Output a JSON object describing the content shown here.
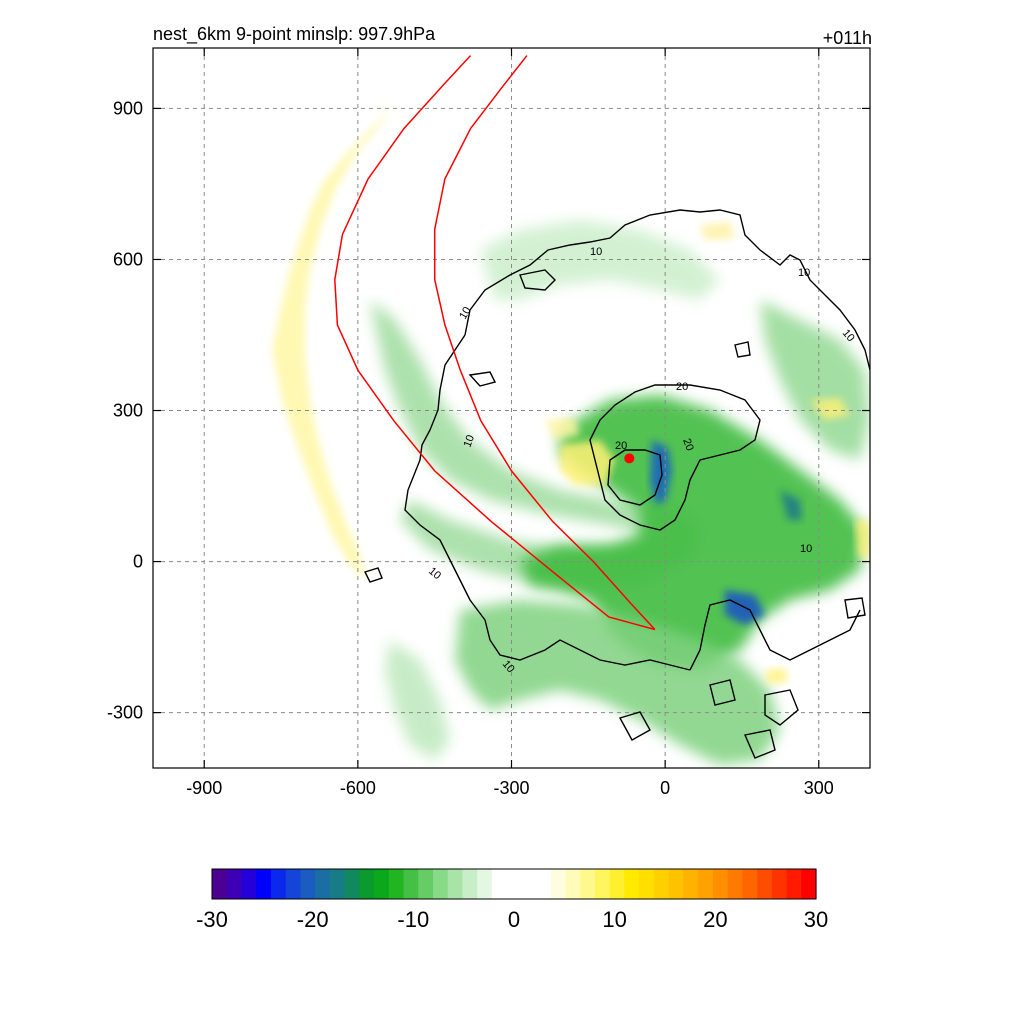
{
  "chart_data": {
    "type": "heatmap",
    "title_left": "nest_6km  9-point minslp: 997.9hPa",
    "title_right": "+011h",
    "xlabel": "",
    "ylabel": "",
    "xlim": [
      -1000,
      400
    ],
    "ylim": [
      -410,
      1020
    ],
    "xticks": [
      -900,
      -600,
      -300,
      0,
      300
    ],
    "yticks": [
      -300,
      0,
      300,
      600,
      900
    ],
    "grid": true,
    "colorbar": {
      "min": -30,
      "max": 30,
      "ticks": [
        -30,
        -20,
        -10,
        0,
        10,
        20,
        30
      ],
      "colors": [
        "#4b0091",
        "#3d00b5",
        "#2400d9",
        "#0000ff",
        "#0a28ee",
        "#1445d8",
        "#1a5cc0",
        "#1b6ea4",
        "#187c86",
        "#12885f",
        "#0a9a2e",
        "#0aa81a",
        "#22b522",
        "#44c044",
        "#66cc66",
        "#88d988",
        "#a8e3a8",
        "#c7eec7",
        "#e3f7e3",
        "#ffffff",
        "#ffffff",
        "#ffffff",
        "#ffffff",
        "#fffde0",
        "#fffbb8",
        "#fff88c",
        "#fff55e",
        "#ffef2e",
        "#ffea00",
        "#ffde00",
        "#ffd000",
        "#ffc200",
        "#ffb200",
        "#ffa100",
        "#ff8f00",
        "#ff7a00",
        "#ff6500",
        "#ff4d00",
        "#ff3300",
        "#ff1a00",
        "#ff0000"
      ]
    },
    "contour_labels": [
      "10",
      "10",
      "10",
      "10",
      "10",
      "10",
      "10",
      "10",
      "20",
      "20",
      "20"
    ],
    "storm_center": {
      "x": -70,
      "y": 205
    },
    "track_red": [
      {
        "points": [
          [
            -380,
            1005
          ],
          [
            -430,
            950
          ],
          [
            -510,
            860
          ],
          [
            -580,
            760
          ],
          [
            -630,
            650
          ],
          [
            -645,
            560
          ],
          [
            -640,
            470
          ],
          [
            -600,
            380
          ],
          [
            -530,
            280
          ],
          [
            -450,
            180
          ],
          [
            -340,
            80
          ],
          [
            -220,
            -20
          ],
          [
            -110,
            -110
          ],
          [
            -20,
            -135
          ]
        ]
      },
      {
        "points": [
          [
            -270,
            1005
          ],
          [
            -320,
            940
          ],
          [
            -380,
            860
          ],
          [
            -430,
            760
          ],
          [
            -450,
            660
          ],
          [
            -450,
            560
          ],
          [
            -430,
            470
          ],
          [
            -400,
            380
          ],
          [
            -360,
            280
          ],
          [
            -300,
            180
          ],
          [
            -220,
            80
          ],
          [
            -140,
            0
          ],
          [
            -70,
            -80
          ],
          [
            -20,
            -135
          ]
        ]
      }
    ]
  }
}
